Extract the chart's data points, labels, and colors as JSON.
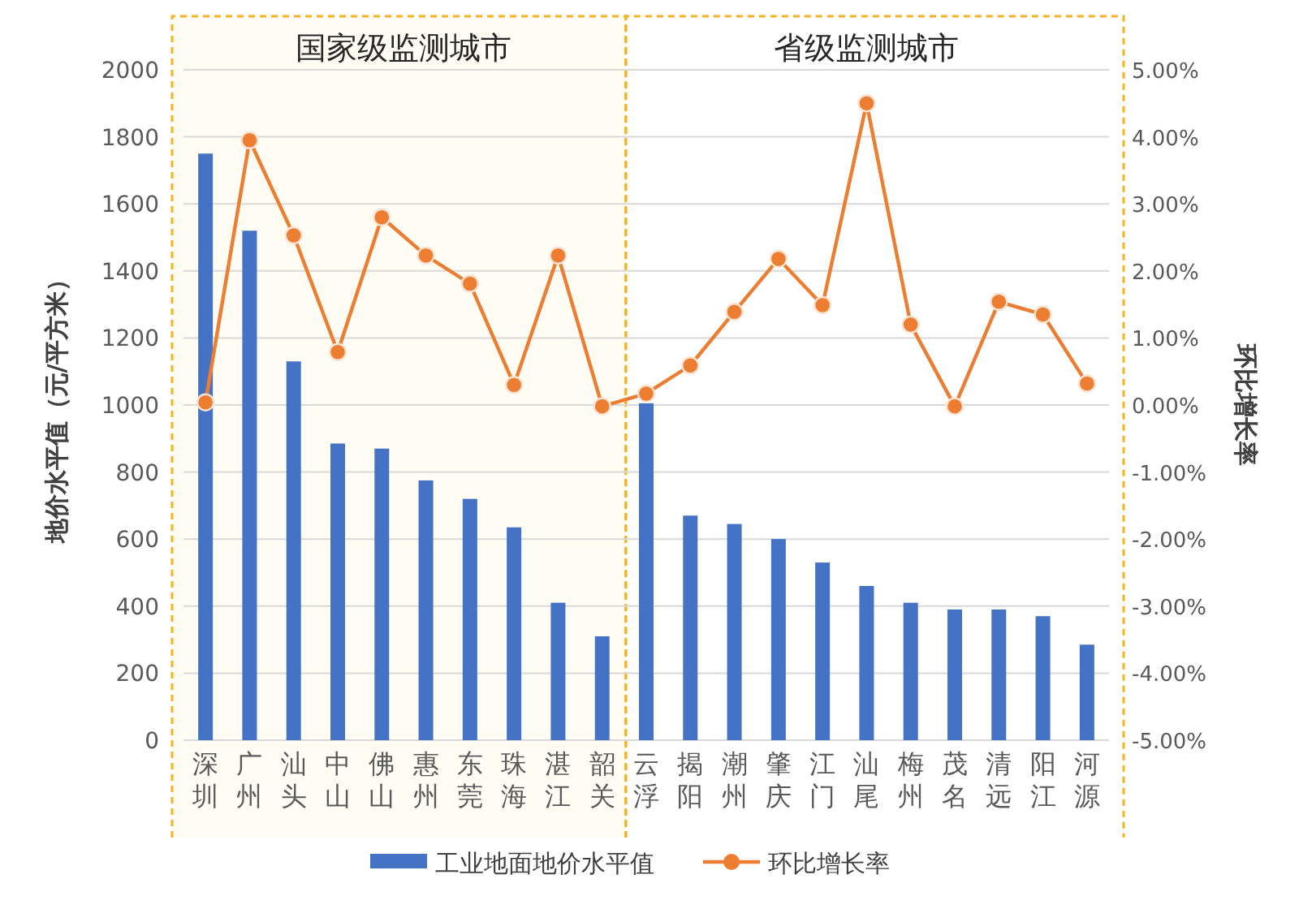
{
  "chart_data": {
    "type": "bar",
    "categories": [
      "深圳",
      "广州",
      "汕头",
      "中山",
      "佛山",
      "惠州",
      "东莞",
      "珠海",
      "湛江",
      "韶关",
      "云浮",
      "揭阳",
      "潮州",
      "肇庆",
      "江门",
      "汕尾",
      "梅州",
      "茂名",
      "清远",
      "阳江",
      "河源"
    ],
    "series": [
      {
        "name": "工业地面地价水平值",
        "color": "#4472c4",
        "values": [
          1750,
          1520,
          1130,
          885,
          870,
          775,
          720,
          635,
          410,
          310,
          1005,
          670,
          645,
          600,
          530,
          460,
          410,
          390,
          390,
          370,
          285
        ]
      },
      {
        "name": "环比增长率",
        "type": "line",
        "axis": "y2",
        "color": "#ed7d31",
        "marker": "circle",
        "values": [
          0.04,
          3.95,
          2.53,
          0.79,
          2.8,
          2.23,
          1.81,
          0.3,
          2.23,
          -0.02,
          0.17,
          0.59,
          1.39,
          2.18,
          1.49,
          4.5,
          1.2,
          -0.02,
          1.54,
          1.35,
          0.32
        ]
      }
    ],
    "ylabel": "地价水平值（元/平方米）",
    "y2label": "环比增长率",
    "ylim": [
      0,
      2000
    ],
    "yticks": [
      0,
      200,
      400,
      600,
      800,
      1000,
      1200,
      1400,
      1600,
      1800,
      2000
    ],
    "y2lim": [
      -5,
      5
    ],
    "y2ticks": [
      {
        "value": -5,
        "label": "-5.00%"
      },
      {
        "value": -4,
        "label": "-4.00%"
      },
      {
        "value": -3,
        "label": "-3.00%"
      },
      {
        "value": -2,
        "label": "-2.00%"
      },
      {
        "value": -1,
        "label": "-1.00%"
      },
      {
        "value": 0,
        "label": "0.00%"
      },
      {
        "value": 1,
        "label": "1.00%"
      },
      {
        "value": 2,
        "label": "2.00%"
      },
      {
        "value": 3,
        "label": "3.00%"
      },
      {
        "value": 4,
        "label": "4.00%"
      },
      {
        "value": 5,
        "label": "5.00%"
      }
    ],
    "annotations": [
      "国家级监测城市",
      "省级监测城市"
    ],
    "grid": "y",
    "legend": "bottom"
  }
}
